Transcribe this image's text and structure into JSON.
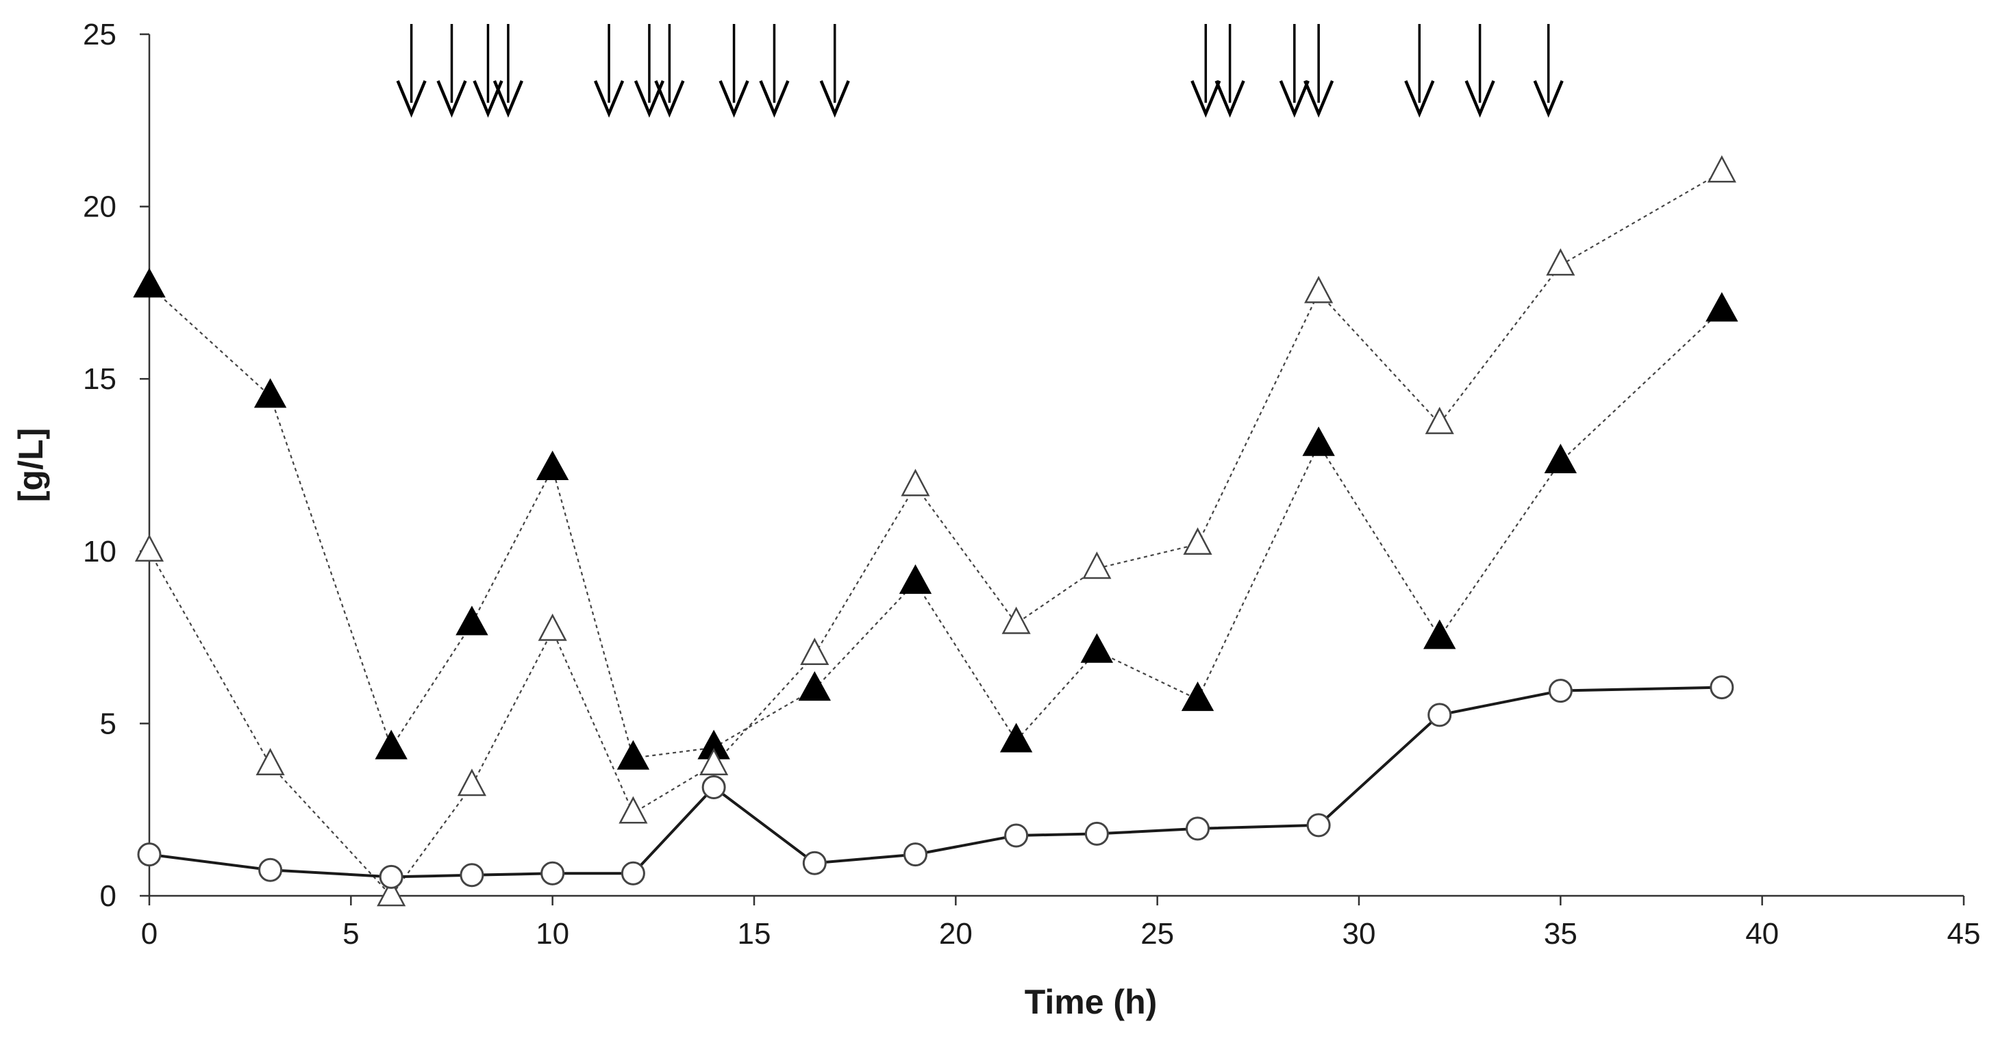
{
  "chart_data": {
    "type": "line",
    "title": "",
    "xlabel": "Time (h)",
    "ylabel": "[g/L]",
    "xlim": [
      0,
      45
    ],
    "ylim": [
      0,
      25
    ],
    "xticks": [
      0,
      5,
      10,
      15,
      20,
      25,
      30,
      35,
      40,
      45
    ],
    "yticks": [
      0,
      5,
      10,
      15,
      20,
      25
    ],
    "grid": false,
    "legend": "none",
    "series": [
      {
        "name": "filled-triangle",
        "marker": "triangle-filled",
        "line": "dotted",
        "x": [
          0,
          3,
          6,
          8,
          10,
          12,
          14,
          16.5,
          19,
          21.5,
          23.5,
          26,
          29,
          32,
          35,
          39
        ],
        "values": [
          17.7,
          14.5,
          4.3,
          7.9,
          12.4,
          4.0,
          4.3,
          6.0,
          9.1,
          4.5,
          7.1,
          5.7,
          13.1,
          7.5,
          12.6,
          17.0
        ]
      },
      {
        "name": "open-triangle",
        "marker": "triangle-open",
        "line": "dotted",
        "x": [
          0,
          3,
          6,
          8,
          10,
          12,
          14,
          16.5,
          19,
          21.5,
          23.5,
          26,
          29,
          32,
          35,
          39
        ],
        "values": [
          10.0,
          3.8,
          0.0,
          3.2,
          7.7,
          2.4,
          3.8,
          7.0,
          11.9,
          7.9,
          9.5,
          10.2,
          17.5,
          13.7,
          18.3,
          21.0
        ]
      },
      {
        "name": "open-circle",
        "marker": "circle-open",
        "line": "solid",
        "x": [
          0,
          3,
          6,
          8,
          10,
          12,
          14,
          16.5,
          19,
          21.5,
          23.5,
          26,
          29,
          32,
          35,
          39
        ],
        "values": [
          1.2,
          0.75,
          0.55,
          0.6,
          0.65,
          0.65,
          3.15,
          0.95,
          1.2,
          1.75,
          1.8,
          1.95,
          2.05,
          5.25,
          5.95,
          6.05
        ]
      }
    ],
    "annotations": {
      "type": "feeding-arrows",
      "x": [
        6.5,
        7.5,
        8.4,
        8.9,
        11.4,
        12.4,
        12.9,
        14.5,
        15.5,
        17.0,
        26.2,
        26.8,
        28.4,
        29.0,
        31.5,
        33.0,
        34.7
      ]
    }
  }
}
